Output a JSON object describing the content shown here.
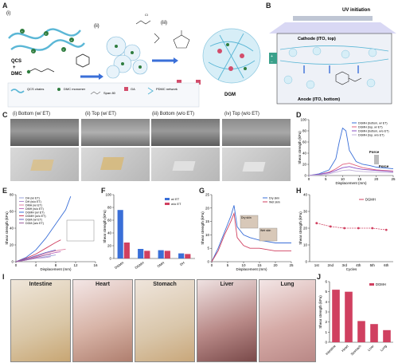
{
  "panel_letters": [
    "A",
    "B",
    "C",
    "D",
    "E",
    "F",
    "G",
    "H",
    "I",
    "J"
  ],
  "panelA": {
    "steps": [
      "(i)",
      "(ii)",
      "(iii)"
    ],
    "labels": {
      "qcs": "QCS",
      "plus": "+",
      "dmc": "DMC",
      "microspheres": "PDMC-QCS\nmicrospheres",
      "dgm": "DGM"
    },
    "legend": [
      {
        "text": "QCS chains"
      },
      {
        "text": "DMC monomer"
      },
      {
        "text": "Span 80"
      },
      {
        "text": "GA"
      },
      {
        "text": "PDMC network"
      }
    ]
  },
  "panelB": {
    "title": "UV initiation",
    "cathode": "Cathode (ITO, top)",
    "anode": "Anode (ITO, bottom)"
  },
  "panelC": {
    "items": [
      {
        "roman": "(i)",
        "label": "Bottom (w/ ET)"
      },
      {
        "roman": "(ii)",
        "label": "Top (w/ ET)"
      },
      {
        "roman": "(iii)",
        "label": "Bottom (w/o ET)"
      },
      {
        "roman": "(iv)",
        "label": "Top (w/o ET)"
      }
    ]
  },
  "chart_data": [
    {
      "panel": "D",
      "type": "line",
      "xlabel": "Displacement (mm)",
      "ylabel": "Shear strength (kPa)",
      "xlim": [
        0,
        25
      ],
      "ylim": [
        0,
        100
      ],
      "xticks": [
        0,
        5,
        10,
        15,
        20,
        25
      ],
      "yticks": [
        0,
        20,
        40,
        60,
        80,
        100
      ],
      "series": [
        {
          "name": "DGMH (bottom, w/ ET)",
          "color": "#3a6fd8",
          "x": [
            0,
            3,
            6,
            8,
            9,
            10,
            11,
            12,
            14,
            16,
            18,
            20,
            25
          ],
          "y": [
            0,
            3,
            10,
            30,
            60,
            85,
            80,
            45,
            25,
            20,
            18,
            15,
            12
          ]
        },
        {
          "name": "DGMH (top, w/ ET)",
          "color": "#e0607e",
          "x": [
            0,
            3,
            6,
            8,
            10,
            12,
            14,
            16,
            20,
            25
          ],
          "y": [
            0,
            2,
            6,
            12,
            20,
            22,
            18,
            14,
            10,
            8
          ]
        },
        {
          "name": "DGMH (bottom, w/o ET)",
          "color": "#8a4fc4",
          "x": [
            0,
            3,
            6,
            8,
            10,
            12,
            14,
            16,
            20,
            25
          ],
          "y": [
            0,
            2,
            5,
            9,
            14,
            16,
            13,
            11,
            9,
            7
          ]
        },
        {
          "name": "DGMH (top, w/o ET)",
          "color": "#c0b0d8",
          "x": [
            0,
            3,
            6,
            8,
            10,
            12,
            14,
            16,
            20,
            25
          ],
          "y": [
            0,
            1,
            3,
            6,
            9,
            10,
            8,
            7,
            6,
            5
          ]
        }
      ],
      "annotations": [
        "Force",
        "Force"
      ]
    },
    {
      "panel": "E",
      "type": "line",
      "xlabel": "Displacement (mm)",
      "ylabel": "Shear strength (kPa)",
      "xlim": [
        0,
        16
      ],
      "ylim": [
        0,
        80
      ],
      "xticks": [
        0,
        4,
        8,
        12,
        16
      ],
      "yticks": [
        0,
        20,
        40,
        60,
        80
      ],
      "series": [
        {
          "name": "DH (w/ ET)",
          "color": "#9aa0d8",
          "x": [
            0,
            2,
            4,
            6,
            8
          ],
          "y": [
            0,
            2,
            4,
            6,
            8
          ]
        },
        {
          "name": "DH (w/o ET)",
          "color": "#b090d0",
          "x": [
            0,
            2,
            4,
            6,
            7
          ],
          "y": [
            0,
            2,
            4,
            5,
            6
          ]
        },
        {
          "name": "DMH (w/ ET)",
          "color": "#e080a0",
          "x": [
            0,
            2,
            4,
            6,
            8,
            10
          ],
          "y": [
            0,
            3,
            6,
            10,
            13,
            15
          ]
        },
        {
          "name": "DMH (w/o ET)",
          "color": "#c070c0",
          "x": [
            0,
            2,
            4,
            6,
            8,
            9
          ],
          "y": [
            0,
            2,
            5,
            8,
            11,
            12
          ]
        },
        {
          "name": "DGMH (w/ ET)",
          "color": "#3a6fd8",
          "x": [
            0,
            2,
            4,
            6,
            8,
            10,
            11
          ],
          "y": [
            0,
            5,
            14,
            28,
            45,
            62,
            78
          ]
        },
        {
          "name": "DGMH (w/o ET)",
          "color": "#d04060",
          "x": [
            0,
            2,
            4,
            6,
            8,
            9
          ],
          "y": [
            0,
            4,
            9,
            16,
            23,
            26
          ]
        },
        {
          "name": "DGM (w/ ET)",
          "color": "#6060c0",
          "x": [
            0,
            2,
            4,
            6,
            8
          ],
          "y": [
            0,
            3,
            7,
            11,
            14
          ]
        },
        {
          "name": "DGM (w/o ET)",
          "color": "#a060a0",
          "x": [
            0,
            2,
            4,
            6,
            7
          ],
          "y": [
            0,
            2,
            5,
            8,
            9
          ]
        }
      ]
    },
    {
      "panel": "F",
      "type": "bar",
      "xlabel": "",
      "ylabel": "Shear strength (kPa)",
      "ylim": [
        0,
        100
      ],
      "yticks": [
        0,
        20,
        40,
        60,
        80,
        100
      ],
      "categories": [
        "DGMH",
        "DGMH",
        "DMH",
        "DH"
      ],
      "series": [
        {
          "name": "w/ ET",
          "color": "#3a6fd8",
          "values": [
            76,
            15,
            13,
            8
          ]
        },
        {
          "name": "w/o ET",
          "color": "#d04060",
          "values": [
            25,
            12,
            12,
            7
          ]
        }
      ]
    },
    {
      "panel": "G",
      "type": "line",
      "xlabel": "Displacement (mm)",
      "ylabel": "Shear strength (kPa)",
      "xlim": [
        0,
        25
      ],
      "ylim": [
        0,
        25
      ],
      "xticks": [
        0,
        5,
        10,
        15,
        20,
        25
      ],
      "yticks": [
        0,
        5,
        10,
        15,
        20,
        25
      ],
      "series": [
        {
          "name": "Dry skin",
          "color": "#3a6fd8",
          "x": [
            0,
            2,
            4,
            6,
            7,
            8,
            10,
            12,
            15,
            20,
            25
          ],
          "y": [
            0,
            5,
            11,
            17,
            21,
            13,
            10,
            9,
            8,
            7,
            7
          ]
        },
        {
          "name": "Wet skin",
          "color": "#d04060",
          "x": [
            0,
            2,
            4,
            6,
            7,
            8,
            10,
            12,
            15,
            20,
            25
          ],
          "y": [
            0,
            4,
            10,
            15,
            18,
            9,
            6,
            5,
            5,
            4,
            4
          ]
        }
      ],
      "insets": [
        "Dry skin",
        "Wet skin"
      ]
    },
    {
      "panel": "H",
      "type": "line",
      "xlabel": "Cycles",
      "ylabel": "Shear strength (kPa)",
      "ylim": [
        0,
        40
      ],
      "yticks": [
        0,
        10,
        20,
        30,
        40
      ],
      "categories": [
        "1st",
        "2nd",
        "3rd",
        "4th",
        "5th",
        "6th"
      ],
      "series": [
        {
          "name": "DGMH",
          "color": "#d04060",
          "values": [
            23,
            21,
            20,
            20,
            20,
            19
          ]
        }
      ]
    },
    {
      "panel": "J",
      "type": "bar",
      "xlabel": "",
      "ylabel": "Shear strength (kPa)",
      "ylim": [
        0,
        6
      ],
      "yticks": [
        0,
        1,
        2,
        3,
        4,
        5,
        6
      ],
      "categories": [
        "Intestine",
        "Heart",
        "Stomach",
        "Liver",
        "Lung"
      ],
      "series": [
        {
          "name": "DGMH",
          "color": "#d04060",
          "values": [
            5.2,
            5.0,
            2.1,
            1.8,
            1.2
          ]
        }
      ]
    }
  ],
  "panelI": {
    "organs": [
      "Intestine",
      "Heart",
      "Stomach",
      "Liver",
      "Lung"
    ]
  }
}
